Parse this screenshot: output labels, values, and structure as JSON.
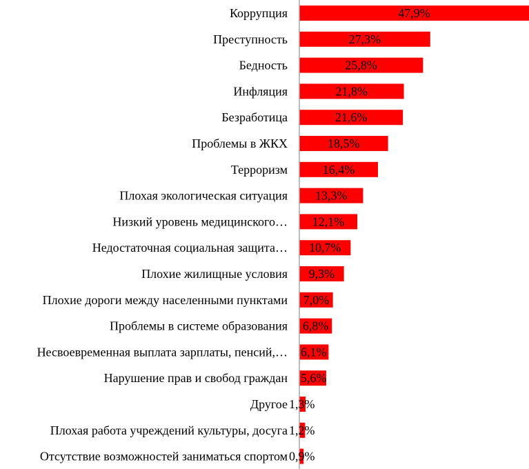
{
  "chart_data": {
    "type": "bar",
    "orientation": "horizontal",
    "title": "",
    "xlabel": "",
    "ylabel": "",
    "xlim": [
      0,
      47.9
    ],
    "grid": false,
    "legend": "none",
    "bar_color": "#ff0000",
    "axis_color": "#a6a6a6",
    "categories": [
      "Коррупция",
      "Преступность",
      "Бедность",
      "Инфляция",
      "Безработица",
      "Проблемы в ЖКХ",
      "Терроризм",
      "Плохая экологическая ситуация",
      "Низкий уровень медицинского…",
      "Недостаточная социальная защита…",
      "Плохие жилищные условия",
      "Плохие дороги между населенными пунктами",
      "Проблемы в системе образования",
      "Несвоевременная выплата зарплаты, пенсий,…",
      "Нарушение прав и свобод граждан",
      "Другое",
      "Плохая работа учреждений культуры, досуга",
      "Отсутствие возможностей заниматься спортом"
    ],
    "values": [
      47.9,
      27.3,
      25.8,
      21.8,
      21.6,
      18.5,
      16.4,
      13.3,
      12.1,
      10.7,
      9.3,
      7.0,
      6.8,
      6.1,
      5.6,
      1.3,
      1.2,
      0.9
    ],
    "data_labels": [
      "47,9%",
      "27,3%",
      "25,8%",
      "21,8%",
      "21,6%",
      "18,5%",
      "16,4%",
      "13,3%",
      "12,1%",
      "10,7%",
      "9,3%",
      "7,0%",
      "6,8%",
      "6,1%",
      "5,6%",
      "1,3%",
      "1,2%",
      "0,9%"
    ]
  }
}
